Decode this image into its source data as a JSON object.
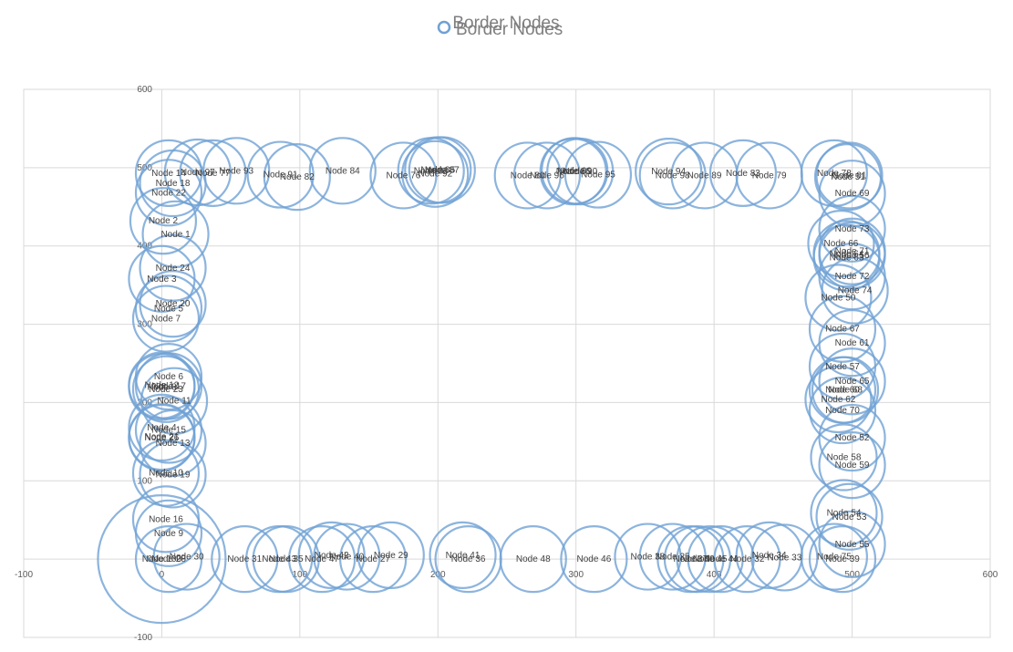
{
  "chart_data": {
    "type": "scatter",
    "subtype": "bubble",
    "title": "Border Nodes",
    "legend": {
      "entries": [
        "Border Nodes"
      ],
      "position": "top"
    },
    "series": [
      {
        "name": "Border Nodes",
        "color": "#6fa1d4",
        "points": [
          {
            "label": "Node 1",
            "x": 10,
            "y": 415
          },
          {
            "label": "Node 2",
            "x": 1,
            "y": 432
          },
          {
            "label": "Node 3",
            "x": 0,
            "y": 358
          },
          {
            "label": "Node 4",
            "x": 0,
            "y": 168
          },
          {
            "label": "Node 5",
            "x": 5,
            "y": 320
          },
          {
            "label": "Node 6",
            "x": 5,
            "y": 233
          },
          {
            "label": "Node 7",
            "x": 3,
            "y": 307
          },
          {
            "label": "Node 8",
            "x": 0,
            "y": 220
          },
          {
            "label": "Node 9",
            "x": 5,
            "y": 33
          },
          {
            "label": "Node 10",
            "x": 3,
            "y": 110
          },
          {
            "label": "Node 11",
            "x": 9,
            "y": 202
          },
          {
            "label": "Node 12",
            "x": 0,
            "y": 222
          },
          {
            "label": "Node 13",
            "x": 8,
            "y": 148
          },
          {
            "label": "Node 14",
            "x": 5,
            "y": 493
          },
          {
            "label": "Node 15",
            "x": 5,
            "y": 165
          },
          {
            "label": "Node 16",
            "x": 3,
            "y": 51
          },
          {
            "label": "Node 17",
            "x": 5,
            "y": 221
          },
          {
            "label": "Node 18",
            "x": 8,
            "y": 480
          },
          {
            "label": "Node 19",
            "x": 8,
            "y": 108
          },
          {
            "label": "Node 20",
            "x": 8,
            "y": 326
          },
          {
            "label": "Node 21",
            "x": 0,
            "y": 156
          },
          {
            "label": "Node 22",
            "x": 5,
            "y": 468
          },
          {
            "label": "Node 23",
            "x": 3,
            "y": 217
          },
          {
            "label": "Node 24",
            "x": 8,
            "y": 372
          },
          {
            "label": "Node 25",
            "x": 370,
            "y": 3
          },
          {
            "label": "Node 26",
            "x": 0,
            "y": 155
          },
          {
            "label": "Node 27",
            "x": 153,
            "y": 0
          },
          {
            "label": "Node 28",
            "x": 5,
            "y": 0
          },
          {
            "label": "Node 29",
            "x": 166,
            "y": 5
          },
          {
            "label": "Node 30",
            "x": 18,
            "y": 3
          },
          {
            "label": "Node 31",
            "x": 60,
            "y": 0
          },
          {
            "label": "Node 32",
            "x": 424,
            "y": 0
          },
          {
            "label": "Node 33",
            "x": 451,
            "y": 2
          },
          {
            "label": "Node 34",
            "x": 440,
            "y": 5
          },
          {
            "label": "Node 35",
            "x": 90,
            "y": 0
          },
          {
            "label": "Node 36",
            "x": 222,
            "y": 0
          },
          {
            "label": "Node 37",
            "x": 383,
            "y": 0
          },
          {
            "label": "Node 38",
            "x": 352,
            "y": 3
          },
          {
            "label": "Node 39",
            "x": 493,
            "y": 0
          },
          {
            "label": "Node 40",
            "x": 134,
            "y": 3
          },
          {
            "label": "Node 41",
            "x": 218,
            "y": 5
          },
          {
            "label": "Node 42",
            "x": 123,
            "y": 5
          },
          {
            "label": "Node 43",
            "x": 85,
            "y": 0
          },
          {
            "label": "Node 44",
            "x": 405,
            "y": 0
          },
          {
            "label": "Node 45",
            "x": 397,
            "y": 0
          },
          {
            "label": "Node 46",
            "x": 313,
            "y": 0
          },
          {
            "label": "Node 47",
            "x": 116,
            "y": 0
          },
          {
            "label": "Node 48",
            "x": 269,
            "y": 0
          },
          {
            "label": "Node 49",
            "x": 388,
            "y": 0
          },
          {
            "label": "Node 50",
            "x": 490,
            "y": 334
          },
          {
            "label": "Node 51",
            "x": 497,
            "y": 488
          },
          {
            "label": "Node 52",
            "x": 500,
            "y": 155
          },
          {
            "label": "Node 53",
            "x": 498,
            "y": 54
          },
          {
            "label": "Node 54",
            "x": 494,
            "y": 59
          },
          {
            "label": "Node 55",
            "x": 500,
            "y": 19
          },
          {
            "label": "Node 56",
            "x": 500,
            "y": 388
          },
          {
            "label": "Node 57",
            "x": 493,
            "y": 246
          },
          {
            "label": "Node 58",
            "x": 494,
            "y": 130
          },
          {
            "label": "Node 59",
            "x": 500,
            "y": 120
          },
          {
            "label": "Node 60",
            "x": 493,
            "y": 216
          },
          {
            "label": "Node 61",
            "x": 500,
            "y": 276
          },
          {
            "label": "Node 62",
            "x": 490,
            "y": 204
          },
          {
            "label": "Node 63",
            "x": 496,
            "y": 385
          },
          {
            "label": "Node 64",
            "x": 496,
            "y": 390
          },
          {
            "label": "Node 65",
            "x": 500,
            "y": 227
          },
          {
            "label": "Node 66",
            "x": 492,
            "y": 403
          },
          {
            "label": "Node 67",
            "x": 493,
            "y": 294
          },
          {
            "label": "Node 68",
            "x": 495,
            "y": 216
          },
          {
            "label": "Node 69",
            "x": 500,
            "y": 467
          },
          {
            "label": "Node 70",
            "x": 493,
            "y": 190
          },
          {
            "label": "Node 71",
            "x": 500,
            "y": 393
          },
          {
            "label": "Node 72",
            "x": 500,
            "y": 361
          },
          {
            "label": "Node 73",
            "x": 500,
            "y": 422
          },
          {
            "label": "Node 74",
            "x": 502,
            "y": 343
          },
          {
            "label": "Node 75",
            "x": 487,
            "y": 3
          },
          {
            "label": "Node 76",
            "x": 175,
            "y": 490
          },
          {
            "label": "Node 77",
            "x": 37,
            "y": 493
          },
          {
            "label": "Node 78",
            "x": 487,
            "y": 493
          },
          {
            "label": "Node 79",
            "x": 440,
            "y": 490
          },
          {
            "label": "Node 80",
            "x": 265,
            "y": 490
          },
          {
            "label": "Node 81",
            "x": 498,
            "y": 490
          },
          {
            "label": "Node 82",
            "x": 98,
            "y": 488
          },
          {
            "label": "Node 83",
            "x": 421,
            "y": 493
          },
          {
            "label": "Node 84",
            "x": 131,
            "y": 496
          },
          {
            "label": "Node 85",
            "x": 200,
            "y": 497
          },
          {
            "label": "Node 86",
            "x": 298,
            "y": 495
          },
          {
            "label": "Node 87",
            "x": 203,
            "y": 497
          },
          {
            "label": "Node 88",
            "x": 195,
            "y": 496
          },
          {
            "label": "Node 89",
            "x": 393,
            "y": 490
          },
          {
            "label": "Node 90",
            "x": 303,
            "y": 495
          },
          {
            "label": "Node 91",
            "x": 86,
            "y": 491
          },
          {
            "label": "Node 92",
            "x": 198,
            "y": 492
          },
          {
            "label": "Node 93",
            "x": 54,
            "y": 496
          },
          {
            "label": "Node 94",
            "x": 367,
            "y": 495
          },
          {
            "label": "Node 95",
            "x": 316,
            "y": 491
          },
          {
            "label": "Node 96",
            "x": 279,
            "y": 490
          },
          {
            "label": "Node 97",
            "x": 26,
            "y": 494
          },
          {
            "label": "Node 98",
            "x": 370,
            "y": 490
          },
          {
            "label": "Node 99",
            "x": 299,
            "y": 496
          },
          {
            "label": "Node 100",
            "x": 0,
            "y": 0
          }
        ]
      }
    ],
    "xaxis": {
      "min": -100,
      "max": 600,
      "step": 100,
      "tick_labels": [
        "-100",
        "0",
        "100",
        "200",
        "300",
        "400",
        "500",
        "600"
      ]
    },
    "yaxis": {
      "min": -100,
      "max": 600,
      "step": 100,
      "tick_labels": [
        "-100",
        "0",
        "100",
        "200",
        "300",
        "400",
        "500",
        "600"
      ]
    },
    "grid": true
  }
}
